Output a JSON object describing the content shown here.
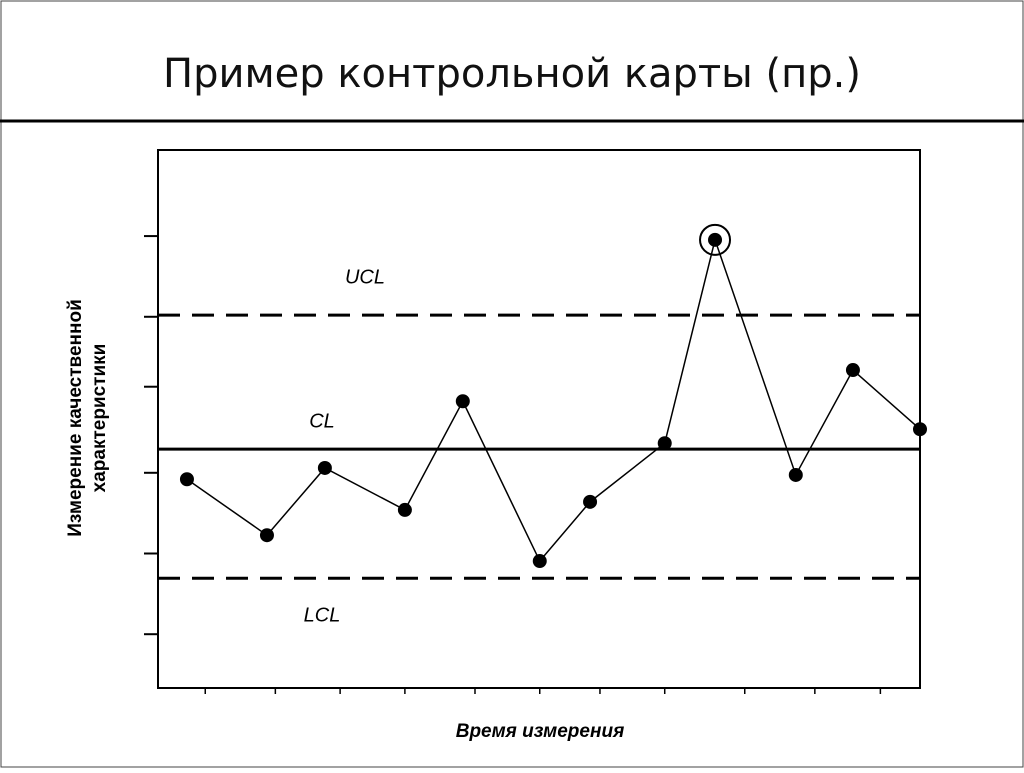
{
  "chart_data": {
    "type": "line",
    "title": "Пример контрольной карты (пр.)",
    "y_label": [
      "Измерение качественной",
      "характеристики"
    ],
    "x_label": "Время измерения",
    "x": [
      3.8,
      14.3,
      21.9,
      32.4,
      40.0,
      50.1,
      56.7,
      66.5,
      73.1,
      83.7,
      91.2,
      100
    ],
    "series": [
      {
        "color": "#000000",
        "values": [
          38.8,
          28.4,
          40.9,
          33.1,
          53.3,
          23.6,
          34.6,
          45.5,
          83.3,
          39.6,
          59.1,
          48.1
        ]
      }
    ],
    "highlighted_point": 8,
    "control_limits": [
      {
        "name": "UCL",
        "value": 69.3,
        "style": "dashed"
      },
      {
        "name": "CL",
        "value": 44.4,
        "style": "solid"
      },
      {
        "name": "LCL",
        "value": 20.4,
        "style": "dashed"
      }
    ],
    "xlim": [
      0,
      100
    ],
    "ylim": [
      0,
      100
    ],
    "xticks": [
      6.2,
      15.4,
      23.9,
      32.4,
      41.6,
      50.1,
      58,
      66.5,
      77,
      86.2,
      94.8
    ],
    "yticks": [
      10,
      25,
      40,
      56,
      69,
      84
    ]
  }
}
